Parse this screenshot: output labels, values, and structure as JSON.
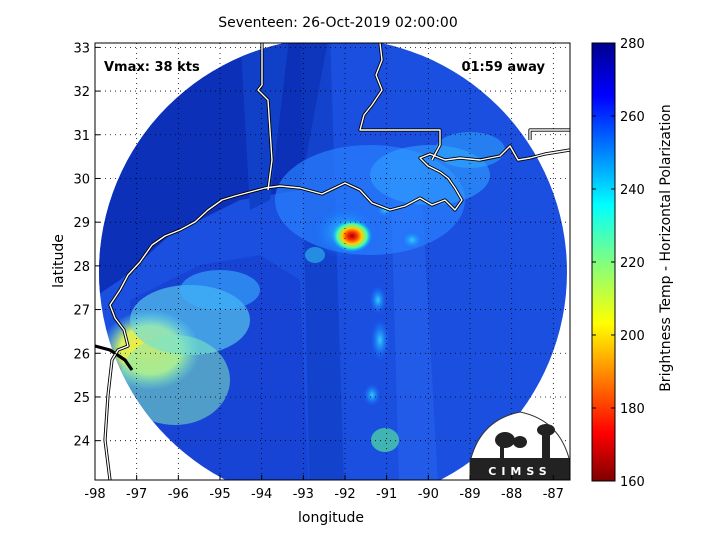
{
  "title": "Seventeen: 26-Oct-2019 02:00:00",
  "vmax_label": "Vmax: 38 kts",
  "time_away_label": "01:59 away",
  "xlabel": "longitude",
  "ylabel": "latitude",
  "x_ticks": [
    "-98",
    "-97",
    "-96",
    "-95",
    "-94",
    "-93",
    "-92",
    "-91",
    "-90",
    "-89",
    "-88",
    "-87"
  ],
  "y_ticks": [
    "24",
    "25",
    "26",
    "27",
    "28",
    "29",
    "30",
    "31",
    "32",
    "33"
  ],
  "colorbar": {
    "label": "Brightness Temp - Horizontal Polarization",
    "ticks": [
      "280",
      "260",
      "240",
      "220",
      "200",
      "180",
      "160"
    ],
    "min": 160,
    "max": 280,
    "colormap": "jet"
  },
  "logo_text": "CIMSS",
  "grid": true,
  "chart_data": {
    "type": "heatmap",
    "title": "Seventeen: 26-Oct-2019 02:00:00",
    "xlabel": "longitude",
    "ylabel": "latitude",
    "xlim": [
      -98,
      -86.6
    ],
    "ylim": [
      23.1,
      33.1
    ],
    "clim": [
      160,
      280
    ],
    "colorbar_label": "Brightness Temp - Horizontal Polarization",
    "annotations": [
      "Vmax: 38 kts",
      "01:59 away"
    ],
    "storm_center": [
      -91.8,
      28.6
    ],
    "min_brightness_temp": 185
  }
}
